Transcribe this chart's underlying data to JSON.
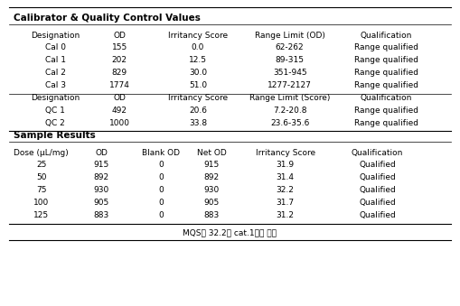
{
  "title1": "Calibrator & Quality Control Values",
  "cal_header": [
    "Designation",
    "OD",
    "Irritancy Score",
    "Range Limit (OD)",
    "Qualification"
  ],
  "cal_rows": [
    [
      "Cal 0",
      "155",
      "0.0",
      "62-262",
      "Range qualified"
    ],
    [
      "Cal 1",
      "202",
      "12.5",
      "89-315",
      "Range qualified"
    ],
    [
      "Cal 2",
      "829",
      "30.0",
      "351-945",
      "Range qualified"
    ],
    [
      "Cal 3",
      "1774",
      "51.0",
      "1277-2127",
      "Range qualified"
    ]
  ],
  "qc_header": [
    "Designation",
    "OD",
    "Irritancy Score",
    "Range Limit (Score)",
    "Qualification"
  ],
  "qc_rows": [
    [
      "QC 1",
      "492",
      "20.6",
      "7.2-20.8",
      "Range qualified"
    ],
    [
      "QC 2",
      "1000",
      "33.8",
      "23.6-35.6",
      "Range qualified"
    ]
  ],
  "title2": "Sample Results",
  "sample_header": [
    "Dose (μL/mg)",
    "OD",
    "Blank OD",
    "Net OD",
    "Irritancy Score",
    "Qualification"
  ],
  "sample_rows": [
    [
      "25",
      "915",
      "0",
      "915",
      "31.9",
      "Qualified"
    ],
    [
      "50",
      "892",
      "0",
      "892",
      "31.4",
      "Qualified"
    ],
    [
      "75",
      "930",
      "0",
      "930",
      "32.2",
      "Qualified"
    ],
    [
      "100",
      "905",
      "0",
      "905",
      "31.7",
      "Qualified"
    ],
    [
      "125",
      "883",
      "0",
      "883",
      "31.2",
      "Qualified"
    ]
  ],
  "footer": "MQS가 32.2로 cat.1으로 판정",
  "bg_color": "#ffffff",
  "text_color": "#000000",
  "font_size": 6.5,
  "title_font_size": 7.5
}
